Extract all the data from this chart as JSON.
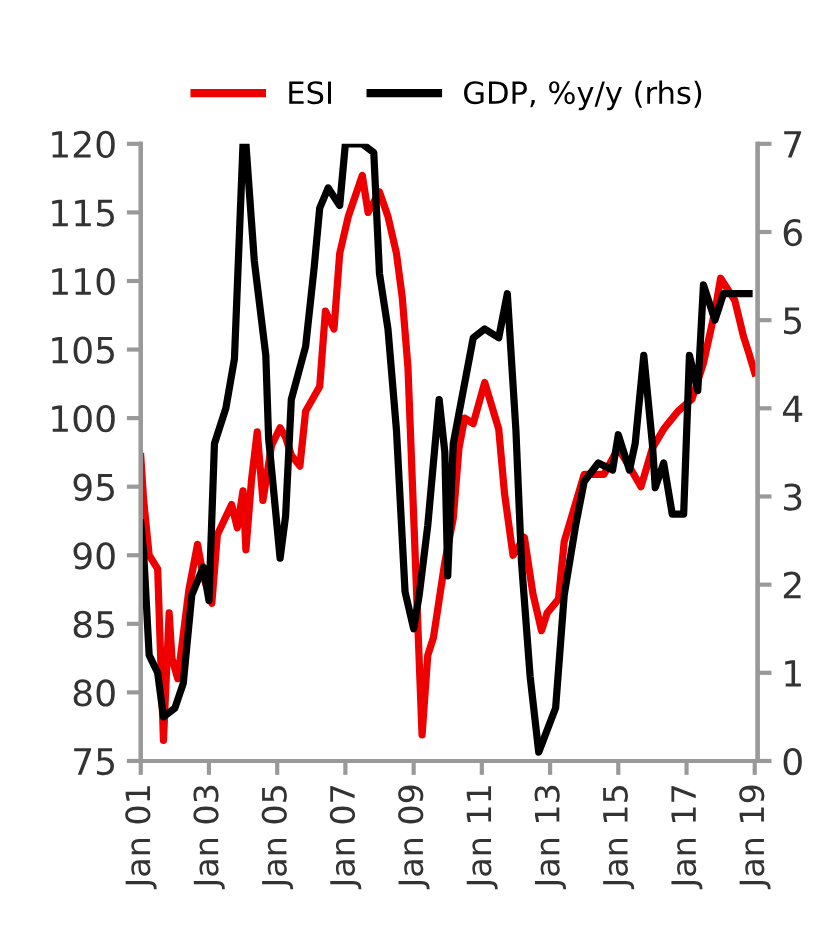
{
  "chart_data": {
    "type": "line",
    "legend": "top",
    "marker": "none",
    "line_style": "solid",
    "grid": false,
    "xlim": [
      "2001-01",
      "2019-02"
    ],
    "xticks": [
      {
        "value": "2001-01",
        "label": "Jan 01"
      },
      {
        "value": "2003-01",
        "label": "Jan 03"
      },
      {
        "value": "2005-01",
        "label": "Jan 05"
      },
      {
        "value": "2007-01",
        "label": "Jan 07"
      },
      {
        "value": "2009-01",
        "label": "Jan 09"
      },
      {
        "value": "2011-01",
        "label": "Jan 11"
      },
      {
        "value": "2013-01",
        "label": "Jan 13"
      },
      {
        "value": "2015-01",
        "label": "Jan 15"
      },
      {
        "value": "2017-01",
        "label": "Jan 17"
      },
      {
        "value": "2019-01",
        "label": "Jan 19"
      }
    ],
    "ylim": [
      75,
      120
    ],
    "yticks": [
      75,
      80,
      85,
      90,
      95,
      100,
      105,
      110,
      115,
      120
    ],
    "y2lim": [
      0,
      7
    ],
    "y2ticks": [
      0,
      1,
      2,
      3,
      4,
      5,
      6,
      7
    ],
    "series": [
      {
        "name": "ESI",
        "color": "#ee0000",
        "x": [
          "2001-01",
          "2001-02",
          "2001-04",
          "2001-07",
          "2001-09",
          "2001-11",
          "2001-12",
          "2002-02",
          "2002-06",
          "2002-09",
          "2002-11",
          "2003-02",
          "2003-04",
          "2003-09",
          "2003-11",
          "2004-01",
          "2004-02",
          "2004-04",
          "2004-06",
          "2004-08",
          "2004-11",
          "2005-02",
          "2005-04",
          "2005-06",
          "2005-09",
          "2005-11",
          "2006-04",
          "2006-06",
          "2006-09",
          "2006-11",
          "2007-02",
          "2007-07",
          "2007-09",
          "2008-01",
          "2008-04",
          "2008-07",
          "2008-09",
          "2008-11",
          "2009-04",
          "2009-06",
          "2009-08",
          "2009-12",
          "2010-03",
          "2010-05",
          "2010-07",
          "2010-10",
          "2011-02",
          "2011-07",
          "2011-09",
          "2011-12",
          "2012-04",
          "2012-07",
          "2012-10",
          "2012-12",
          "2013-04",
          "2013-06",
          "2013-09",
          "2014-01",
          "2014-08",
          "2015-01",
          "2015-04",
          "2015-09",
          "2016-01",
          "2016-05",
          "2016-10",
          "2017-03",
          "2017-07",
          "2017-11",
          "2018-01",
          "2018-06",
          "2018-09",
          "2018-11",
          "2019-01"
        ],
        "values": [
          97.2,
          94,
          90,
          89,
          76.5,
          85.8,
          82.5,
          81,
          87.5,
          90.8,
          88.5,
          86.5,
          91.5,
          93.7,
          92,
          94.7,
          90.4,
          95.5,
          99,
          94,
          98,
          99.3,
          98.6,
          97.3,
          96.5,
          100.5,
          102.3,
          107.8,
          106.5,
          112,
          114.7,
          117.7,
          115,
          116.5,
          114.7,
          112,
          108.8,
          103.7,
          76.9,
          82.7,
          84,
          89.5,
          92.7,
          97.8,
          100,
          99.6,
          102.6,
          99.2,
          94.5,
          90,
          91.3,
          87.2,
          84.5,
          85.8,
          86.8,
          91,
          93.1,
          95.9,
          95.9,
          97.8,
          96.8,
          95,
          97.8,
          99.2,
          100.5,
          101.4,
          104,
          107.8,
          110.2,
          108.6,
          106,
          104.7,
          103.3
        ]
      },
      {
        "name": "GDP, %y/y (rhs)",
        "color": "#000000",
        "axis": "y2",
        "x": [
          "2001-01",
          "2001-02",
          "2001-04",
          "2001-07",
          "2001-09",
          "2002-01",
          "2002-04",
          "2002-07",
          "2002-11",
          "2003-01",
          "2003-03",
          "2003-07",
          "2003-10",
          "2004-01",
          "2004-02",
          "2004-05",
          "2004-09",
          "2004-10",
          "2005-02",
          "2005-04",
          "2005-06",
          "2005-11",
          "2006-02",
          "2006-04",
          "2006-07",
          "2006-11",
          "2007-01",
          "2007-07",
          "2007-11",
          "2008-01",
          "2008-04",
          "2008-07",
          "2008-10",
          "2009-01",
          "2009-03",
          "2009-06",
          "2009-10",
          "2009-12",
          "2010-01",
          "2010-03",
          "2010-10",
          "2011-02",
          "2011-07",
          "2011-10",
          "2012-01",
          "2012-03",
          "2012-06",
          "2012-09",
          "2013-03",
          "2013-06",
          "2013-10",
          "2014-01",
          "2014-06",
          "2014-11",
          "2015-01",
          "2015-05",
          "2015-07",
          "2015-10",
          "2016-01",
          "2016-02",
          "2016-05",
          "2016-08",
          "2016-12",
          "2017-02",
          "2017-05",
          "2017-07",
          "2017-11",
          "2018-02",
          "2018-11"
        ],
        "values": [
          2.7,
          2.36,
          1.2,
          1.0,
          0.5,
          0.6,
          0.88,
          1.88,
          2.2,
          1.82,
          3.6,
          4.0,
          4.56,
          7.0,
          7.0,
          5.67,
          4.6,
          3.66,
          2.3,
          2.78,
          4.1,
          4.7,
          5.6,
          6.27,
          6.5,
          6.3,
          7.0,
          7.0,
          6.9,
          5.53,
          4.9,
          3.75,
          1.92,
          1.5,
          1.88,
          2.67,
          4.1,
          3.5,
          2.1,
          3.6,
          4.8,
          4.9,
          4.8,
          5.3,
          3.75,
          2.25,
          0.96,
          0.1,
          0.6,
          1.88,
          2.67,
          3.17,
          3.38,
          3.3,
          3.7,
          3.3,
          3.6,
          4.6,
          3.6,
          3.1,
          3.38,
          2.8,
          2.8,
          4.6,
          4.2,
          5.4,
          5.0,
          5.3,
          5.3
        ]
      }
    ]
  }
}
